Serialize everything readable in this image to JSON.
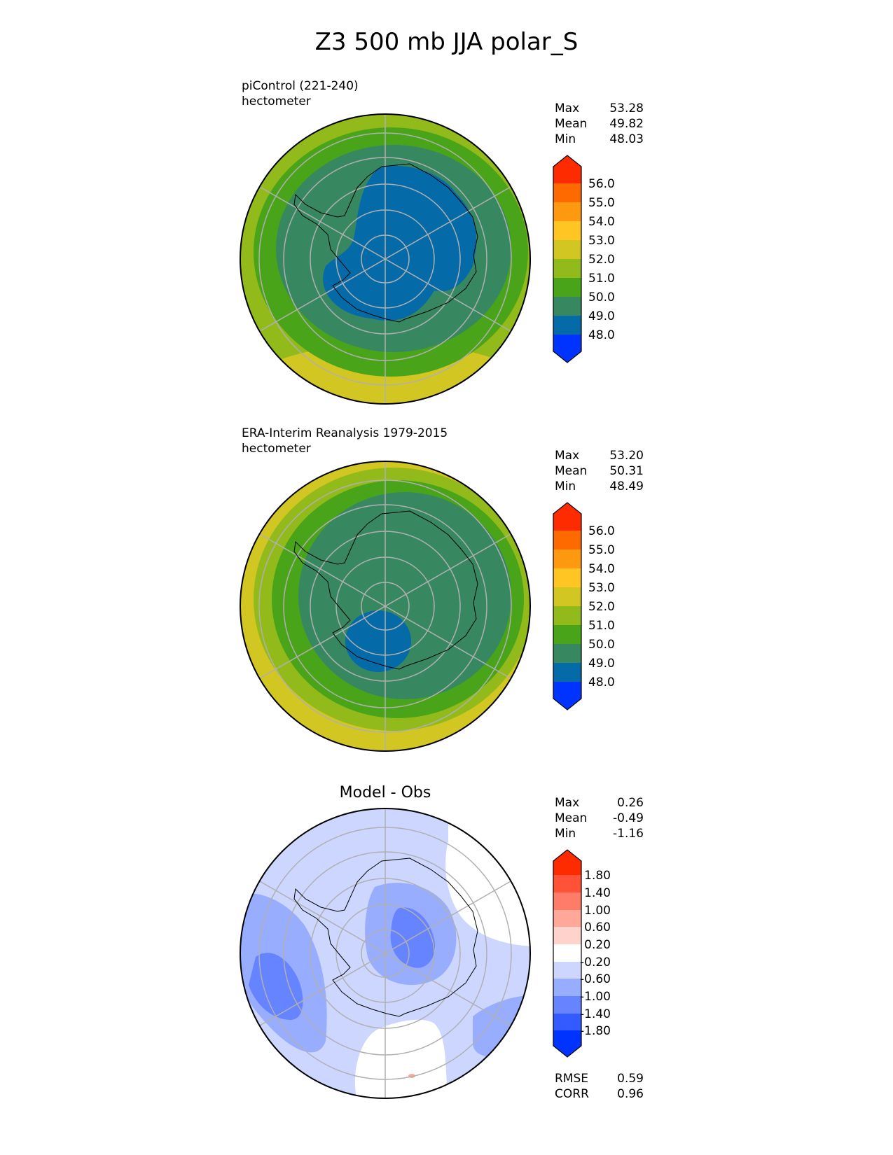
{
  "title": "Z3 500 mb JJA polar_S",
  "panels": [
    {
      "labels": [
        "piControl (221-240)",
        "hectometer"
      ],
      "stats": [
        {
          "label": "Max",
          "value": "53.28"
        },
        {
          "label": "Mean",
          "value": "49.82"
        },
        {
          "label": "Min",
          "value": "48.03"
        }
      ]
    },
    {
      "labels": [
        "ERA-Interim Reanalysis 1979-2015",
        "hectometer"
      ],
      "stats": [
        {
          "label": "Max",
          "value": "53.20"
        },
        {
          "label": "Mean",
          "value": "50.31"
        },
        {
          "label": "Min",
          "value": "48.49"
        }
      ]
    },
    {
      "title": "Model - Obs",
      "stats": [
        {
          "label": "Max",
          "value": "0.26"
        },
        {
          "label": "Mean",
          "value": "-0.49"
        },
        {
          "label": "Min",
          "value": "-1.16"
        }
      ],
      "metrics": [
        {
          "label": "RMSE",
          "value": "0.59"
        },
        {
          "label": "CORR",
          "value": "0.96"
        }
      ]
    }
  ],
  "colorbars": {
    "field": {
      "labels": [
        "56.0",
        "55.0",
        "54.0",
        "53.0",
        "52.0",
        "51.0",
        "50.0",
        "49.0",
        "48.0"
      ],
      "colors": [
        "#ff2b00",
        "#ff6a00",
        "#ff9a10",
        "#ffc623",
        "#d2c622",
        "#93ba1b",
        "#4aa419",
        "#378861",
        "#046aa8",
        "#0033ff"
      ]
    },
    "diff": {
      "labels": [
        "1.80",
        "1.40",
        "1.00",
        "0.60",
        "0.20",
        "-0.20",
        "-0.60",
        "-1.00",
        "-1.40",
        "-1.80"
      ],
      "colors": [
        "#ff2b00",
        "#ff5236",
        "#ff7d68",
        "#ffa899",
        "#ffd3cb",
        "#ffffff",
        "#ccd6ff",
        "#99adff",
        "#6684ff",
        "#335bff",
        "#0033ff"
      ]
    }
  },
  "map_colors": {
    "background_field": "#93ba1b",
    "field_levels": [
      "#d2c622",
      "#93ba1b",
      "#4aa419",
      "#378861",
      "#046aa8"
    ],
    "diff_levels": [
      "#ffffff",
      "#ccd6ff",
      "#99adff",
      "#6684ff",
      "#ffa899"
    ],
    "coast": "#000000",
    "grid": "#b0b0b0"
  }
}
